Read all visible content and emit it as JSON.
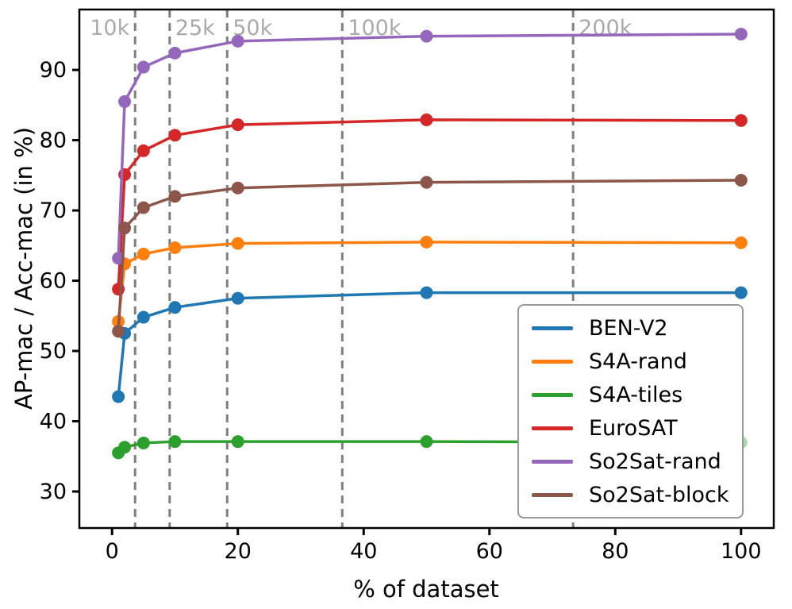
{
  "chart_data": {
    "type": "line",
    "title": "",
    "xlabel": "% of dataset",
    "ylabel": "AP-mac / Acc-mac (in %)",
    "x": [
      1,
      2,
      5,
      10,
      20,
      50,
      100
    ],
    "xlim": [
      -5.2,
      105.2
    ],
    "ylim": [
      24.8,
      98.6
    ],
    "xticks": [
      0,
      20,
      40,
      60,
      80,
      100
    ],
    "yticks": [
      30,
      40,
      50,
      60,
      70,
      80,
      90
    ],
    "grid": false,
    "series": [
      {
        "name": "BEN-V2",
        "color": "#1f77b4",
        "values": [
          43.5,
          52.5,
          54.8,
          56.2,
          57.5,
          58.3,
          58.3
        ]
      },
      {
        "name": "S4A-rand",
        "color": "#ff7f0e",
        "values": [
          54.2,
          62.4,
          63.8,
          64.7,
          65.3,
          65.5,
          65.4
        ]
      },
      {
        "name": "S4A-tiles",
        "color": "#2ca02c",
        "values": [
          35.5,
          36.3,
          36.9,
          37.1,
          37.1,
          37.1,
          37.0
        ],
        "faded_last_marker": true
      },
      {
        "name": "EuroSAT",
        "color": "#d62728",
        "values": [
          58.8,
          75.1,
          78.5,
          80.7,
          82.2,
          82.9,
          82.8
        ]
      },
      {
        "name": "So2Sat-rand",
        "color": "#9467bd",
        "values": [
          63.2,
          85.5,
          90.4,
          92.4,
          94.1,
          94.8,
          95.1
        ]
      },
      {
        "name": "So2Sat-block",
        "color": "#8c564b",
        "values": [
          52.8,
          67.5,
          70.4,
          72.0,
          73.2,
          74.0,
          74.3
        ]
      }
    ],
    "vlines": [
      {
        "x": 3.66,
        "label": "10k",
        "side": "left"
      },
      {
        "x": 9.16,
        "label": "25k",
        "side": "right"
      },
      {
        "x": 18.3,
        "label": "50k",
        "side": "right"
      },
      {
        "x": 36.6,
        "label": "100k",
        "side": "right"
      },
      {
        "x": 73.3,
        "label": "200k",
        "side": "right"
      }
    ],
    "vline_color": "#7f7f7f",
    "vline_label_color": "#aaaaaa",
    "legend": {
      "position": "lower right",
      "entries": [
        "BEN-V2",
        "S4A-rand",
        "S4A-tiles",
        "EuroSAT",
        "So2Sat-rand",
        "So2Sat-block"
      ]
    }
  }
}
